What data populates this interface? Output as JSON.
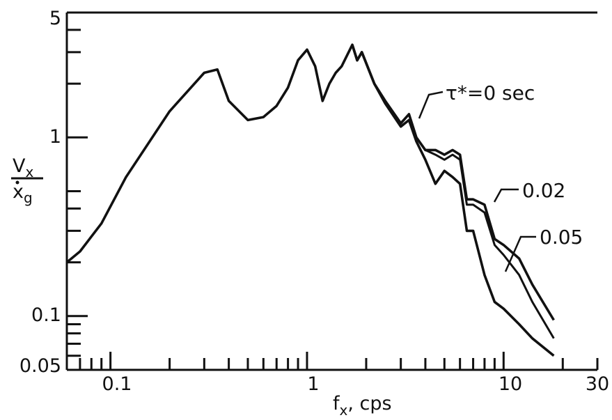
{
  "chart_data": {
    "type": "line",
    "x_scale": "log",
    "y_scale": "log",
    "xlim": [
      0.06,
      30
    ],
    "ylim": [
      0.05,
      5
    ],
    "x_ticks": [
      "0.1",
      "1",
      "10",
      "30"
    ],
    "x_tick_values": [
      0.1,
      1,
      10,
      30
    ],
    "y_ticks": [
      "5",
      "1",
      "0.1",
      "0.05"
    ],
    "y_tick_values": [
      5,
      1,
      0.1,
      0.05
    ],
    "xlabel": {
      "main": "f",
      "sub": "x",
      "rest": ", cps"
    },
    "ylabel": {
      "num_main": "V",
      "num_sub": "x",
      "den_main": "x",
      "den_sub": "g"
    },
    "grid": false,
    "annotations": [
      "τ*=0 sec",
      "0.02",
      "0.05"
    ],
    "series": [
      {
        "name": "τ*=0 sec",
        "x": [
          0.06,
          0.07,
          0.09,
          0.12,
          0.2,
          0.3,
          0.35,
          0.4,
          0.5,
          0.6,
          0.7,
          0.8,
          0.9,
          1.0,
          1.1,
          1.2,
          1.3,
          1.4,
          1.5,
          1.7,
          1.8,
          1.9,
          2.0,
          2.2,
          2.5,
          3.0,
          3.3,
          3.6,
          4.0,
          4.5,
          5.0,
          5.5,
          6.0,
          6.5,
          7.0,
          8.0,
          9.0,
          10.0,
          12.0,
          14.0,
          18.0
        ],
        "y": [
          0.2,
          0.23,
          0.33,
          0.6,
          1.4,
          2.3,
          2.4,
          1.6,
          1.25,
          1.3,
          1.5,
          1.9,
          2.7,
          3.1,
          2.5,
          1.6,
          2.0,
          2.3,
          2.5,
          3.3,
          2.7,
          3.0,
          2.6,
          2.0,
          1.6,
          1.2,
          1.35,
          1.0,
          0.85,
          0.85,
          0.8,
          0.85,
          0.8,
          0.45,
          0.45,
          0.42,
          0.27,
          0.25,
          0.21,
          0.15,
          0.095
        ]
      },
      {
        "name": "0.02",
        "x": [
          1.7,
          1.8,
          1.9,
          2.0,
          2.2,
          2.5,
          3.0,
          3.3,
          3.6,
          4.0,
          4.5,
          5.0,
          5.5,
          6.0,
          6.5,
          7.0,
          8.0,
          9.0,
          10.0,
          12.0,
          14.0,
          18.0
        ],
        "y": [
          3.3,
          2.7,
          3.0,
          2.6,
          2.0,
          1.6,
          1.2,
          1.35,
          1.0,
          0.85,
          0.8,
          0.75,
          0.8,
          0.75,
          0.42,
          0.42,
          0.38,
          0.25,
          0.22,
          0.17,
          0.12,
          0.075
        ]
      },
      {
        "name": "0.05",
        "x": [
          1.7,
          1.8,
          1.9,
          2.0,
          2.2,
          2.5,
          3.0,
          3.3,
          3.6,
          4.0,
          4.5,
          5.0,
          5.5,
          6.0,
          6.5,
          7.0,
          8.0,
          9.0,
          10.0,
          12.0,
          14.0,
          18.0
        ],
        "y": [
          3.3,
          2.7,
          3.0,
          2.6,
          2.0,
          1.55,
          1.15,
          1.25,
          0.95,
          0.75,
          0.55,
          0.65,
          0.6,
          0.55,
          0.3,
          0.3,
          0.17,
          0.12,
          0.11,
          0.09,
          0.075,
          0.06
        ]
      }
    ]
  }
}
